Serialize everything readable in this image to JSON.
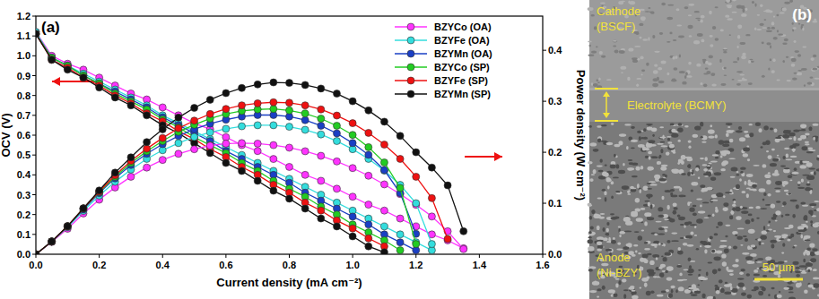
{
  "chart_data": {
    "type": "line",
    "title": "(a)",
    "x_label": "Current density (mA cm⁻²)",
    "y_label": "OCV (V)",
    "y2_label": "Power density (W cm⁻²)",
    "xlim": [
      0,
      1.6
    ],
    "xticks": [
      {
        "value": 0,
        "label": "0.0"
      },
      0.2,
      0.4,
      0.6,
      0.8,
      {
        "value": 1,
        "label": "1.0"
      },
      1.2,
      1.4,
      1.6
    ],
    "ylim": [
      0,
      1.2
    ],
    "yticks": [
      {
        "value": 0,
        "label": "0.0"
      },
      0.1,
      0.2,
      0.3,
      0.4,
      0.5,
      0.6,
      0.7,
      0.8,
      0.9,
      {
        "value": 1,
        "label": "1.0"
      },
      1.1,
      1.2
    ],
    "y2lim": [
      0,
      0.467
    ],
    "y2ticks": [
      {
        "value": 0,
        "label": "0.0"
      },
      0.1,
      0.2,
      0.3,
      0.4
    ],
    "grid": false,
    "legend": "upper right",
    "marker": "circle",
    "x": [
      0,
      0.05,
      0.1,
      0.15,
      0.2,
      0.25,
      0.3,
      0.35,
      0.4,
      0.45,
      0.5,
      0.55,
      0.6,
      0.65,
      0.7,
      0.75,
      0.8,
      0.85,
      0.9,
      0.95,
      1.0,
      1.05,
      1.1,
      1.15,
      1.2,
      1.25,
      1.3,
      1.35
    ],
    "series": [
      {
        "name": "BZYCo (OA)",
        "color": "#ff33ff",
        "values": [
          1.12,
          1.0,
          0.96,
          0.93,
          0.89,
          0.85,
          0.81,
          0.78,
          0.74,
          0.7,
          0.66,
          0.63,
          0.59,
          0.55,
          0.52,
          0.48,
          0.44,
          0.4,
          0.37,
          0.33,
          0.29,
          0.25,
          0.22,
          0.18,
          0.14,
          0.1,
          0.07,
          0.03
        ]
      },
      {
        "name": "BZYFe (OA)",
        "color": "#33dddd",
        "values": [
          1.12,
          0.99,
          0.95,
          0.91,
          0.87,
          0.83,
          0.79,
          0.75,
          0.7,
          0.66,
          0.62,
          0.58,
          0.54,
          0.5,
          0.46,
          0.42,
          0.38,
          0.34,
          0.3,
          0.26,
          0.22,
          0.18,
          0.14,
          0.1,
          0.06,
          0.02,
          null,
          null
        ]
      },
      {
        "name": "BZYMn (OA)",
        "color": "#1a3fc4",
        "values": [
          1.11,
          0.99,
          0.95,
          0.9,
          0.86,
          0.82,
          0.78,
          0.74,
          0.69,
          0.65,
          0.61,
          0.57,
          0.52,
          0.48,
          0.44,
          0.4,
          0.36,
          0.31,
          0.27,
          0.23,
          0.19,
          0.15,
          0.1,
          0.06,
          0.02,
          null,
          null,
          null
        ]
      },
      {
        "name": "BZYCo (SP)",
        "color": "#22cc22",
        "values": [
          1.11,
          0.99,
          0.95,
          0.9,
          0.86,
          0.81,
          0.77,
          0.73,
          0.68,
          0.64,
          0.59,
          0.55,
          0.51,
          0.46,
          0.42,
          0.37,
          0.33,
          0.29,
          0.24,
          0.2,
          0.15,
          0.11,
          0.07,
          0.02,
          null,
          null,
          null,
          null
        ]
      },
      {
        "name": "BZYFe (SP)",
        "color": "#ee1111",
        "values": [
          1.11,
          0.98,
          0.94,
          0.89,
          0.85,
          0.8,
          0.76,
          0.71,
          0.67,
          0.62,
          0.58,
          0.53,
          0.49,
          0.44,
          0.4,
          0.35,
          0.31,
          0.26,
          0.22,
          0.17,
          0.13,
          0.08,
          0.04,
          null,
          null,
          null,
          null,
          null
        ]
      },
      {
        "name": "BZYMn (SP)",
        "color": "#111111",
        "values": [
          1.11,
          0.98,
          0.93,
          0.89,
          0.84,
          0.79,
          0.75,
          0.7,
          0.65,
          0.61,
          0.56,
          0.51,
          0.46,
          0.42,
          0.37,
          0.32,
          0.28,
          0.23,
          0.18,
          0.14,
          0.09,
          0.04,
          0.01,
          null,
          null,
          null,
          null,
          null
        ]
      },
      {
        "name": "BZYCo (OA)",
        "color": "#ff33ff",
        "axis": "y2",
        "values": [
          0,
          0.024,
          0.05,
          0.08,
          0.107,
          0.131,
          0.152,
          0.17,
          0.185,
          0.197,
          0.206,
          0.213,
          0.217,
          0.218,
          0.217,
          0.214,
          0.209,
          0.202,
          0.193,
          0.182,
          0.169,
          0.154,
          0.137,
          0.118,
          0.097,
          0.074,
          0.045,
          0.01
        ]
      },
      {
        "name": "BZYFe (OA)",
        "color": "#33dddd",
        "axis": "y2",
        "values": [
          0,
          0.025,
          0.053,
          0.085,
          0.115,
          0.142,
          0.166,
          0.187,
          0.204,
          0.218,
          0.23,
          0.239,
          0.246,
          0.251,
          0.253,
          0.253,
          0.25,
          0.244,
          0.235,
          0.222,
          0.206,
          0.187,
          0.164,
          0.136,
          0.1,
          0.02,
          null,
          null
        ]
      },
      {
        "name": "BZYMn (OA)",
        "color": "#1a3fc4",
        "axis": "y2",
        "values": [
          0,
          0.025,
          0.055,
          0.088,
          0.12,
          0.149,
          0.175,
          0.197,
          0.216,
          0.232,
          0.245,
          0.256,
          0.264,
          0.27,
          0.273,
          0.273,
          0.27,
          0.263,
          0.252,
          0.237,
          0.218,
          0.195,
          0.165,
          0.12,
          0.04,
          null,
          null,
          null
        ]
      },
      {
        "name": "BZYCo (SP)",
        "color": "#22cc22",
        "axis": "y2",
        "values": [
          0,
          0.025,
          0.055,
          0.09,
          0.122,
          0.152,
          0.179,
          0.202,
          0.222,
          0.24,
          0.254,
          0.266,
          0.275,
          0.281,
          0.284,
          0.285,
          0.282,
          0.276,
          0.266,
          0.252,
          0.234,
          0.21,
          0.18,
          0.13,
          0.02,
          null,
          null,
          null
        ]
      },
      {
        "name": "BZYFe (SP)",
        "color": "#ee1111",
        "axis": "y2",
        "values": [
          0,
          0.025,
          0.055,
          0.09,
          0.123,
          0.155,
          0.183,
          0.207,
          0.228,
          0.247,
          0.262,
          0.275,
          0.285,
          0.292,
          0.296,
          0.298,
          0.297,
          0.292,
          0.284,
          0.272,
          0.257,
          0.238,
          0.215,
          0.187,
          0.152,
          0.11,
          0.03,
          null
        ]
      },
      {
        "name": "BZYMn (SP)",
        "color": "#111111",
        "axis": "y2",
        "values": [
          0,
          0.025,
          0.055,
          0.09,
          0.125,
          0.16,
          0.19,
          0.22,
          0.245,
          0.268,
          0.287,
          0.303,
          0.316,
          0.326,
          0.333,
          0.337,
          0.336,
          0.332,
          0.325,
          0.315,
          0.3,
          0.282,
          0.26,
          0.232,
          0.2,
          0.17,
          0.135,
          0.045
        ]
      }
    ]
  },
  "panel_b": {
    "label": "(b)",
    "cathode": [
      "Cathode",
      "(BSCF)"
    ],
    "electrolyte": "Electrolyte (BCMY)",
    "anode": [
      "Anode",
      "(Ni-BZY)"
    ],
    "scale_bar": "50 µm"
  }
}
